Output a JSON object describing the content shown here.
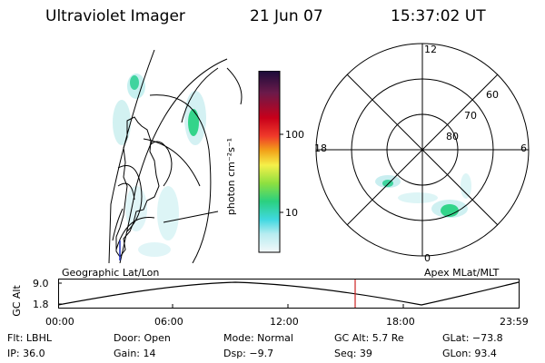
{
  "header": {
    "instrument": "Ultraviolet Imager",
    "date": "21 Jun 07",
    "time": "15:37:02 UT"
  },
  "colorbar": {
    "unit_label": "photon cm⁻²s⁻¹",
    "tick_labels": [
      "100",
      "10"
    ]
  },
  "polar_plot": {
    "mlt_labels": [
      "12",
      "18",
      "6",
      "0"
    ],
    "lat_labels": [
      "60",
      "70",
      "80"
    ],
    "title": "Apex MLat/MLT"
  },
  "geo_plot": {
    "title": "Geographic Lat/Lon"
  },
  "altitude_plot": {
    "axis_label": "GC Alt",
    "y_ticks": [
      "9.0",
      "1.8"
    ],
    "time_ticks": [
      "00:00",
      "06:00",
      "12:00",
      "18:00",
      "23:59"
    ]
  },
  "status": {
    "flt": "Flt: LBHL",
    "door": "Door: Open",
    "mode": "Mode: Normal",
    "gc_alt": "GC Alt: 5.7 Re",
    "glat": "GLat: −73.8",
    "ip": "IP: 36.0",
    "gain": "Gain: 14",
    "dsp": "Dsp:   −9.7",
    "seq": "Seq: 39",
    "glon": "GLon:  93.4"
  },
  "colors": {
    "marker": "#cc2222",
    "colorbar_top": "#1a0b3a",
    "colorbar_bottom": "#f4f8fa"
  }
}
